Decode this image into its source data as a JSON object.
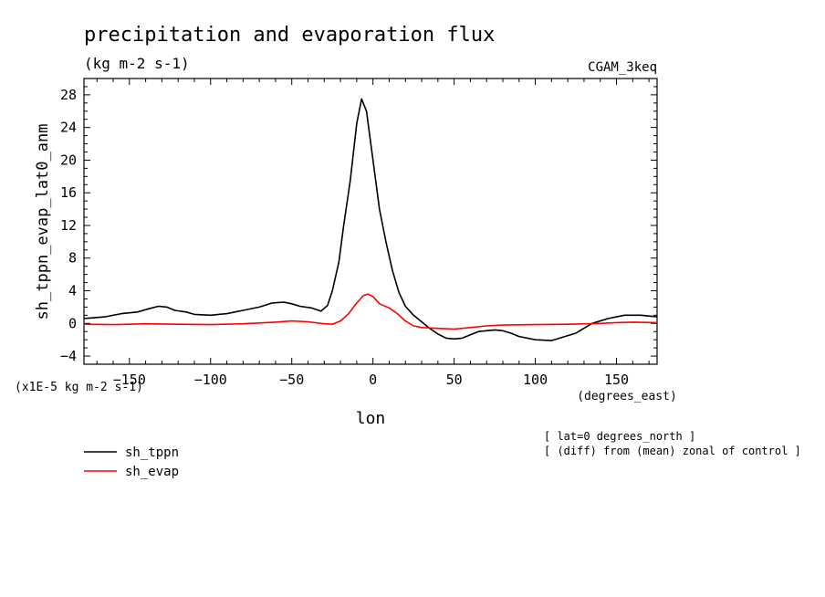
{
  "chart_data": {
    "type": "line",
    "title": "precipitation and evaporation flux",
    "subtitle": "(kg m-2 s-1)",
    "model_label": "CGAM_3keq",
    "xlabel": "lon",
    "x_units": "(degrees_east)",
    "ylabel": "sh_tppn_evap_lat0_anm",
    "y_scale_note": "(x1E-5 kg m-2 s-1)",
    "xlim": [
      -178,
      175
    ],
    "ylim": [
      -5,
      30
    ],
    "x_ticks": [
      -150,
      -100,
      -50,
      0,
      50,
      100,
      150
    ],
    "y_ticks": [
      -4,
      0,
      4,
      8,
      12,
      16,
      20,
      24,
      28
    ],
    "notes": [
      "[ lat=0 degrees_north ]",
      "[ (diff) from (mean) zonal of control ]"
    ],
    "colors": {
      "sh_tppn": "#000000",
      "sh_evap": "#ff0000"
    },
    "series": [
      {
        "name": "sh_tppn",
        "x": [
          -178,
          -165,
          -155,
          -145,
          -138,
          -132,
          -127,
          -122,
          -115,
          -110,
          -100,
          -90,
          -80,
          -70,
          -62,
          -55,
          -50,
          -45,
          -38,
          -32,
          -28,
          -25,
          -21,
          -18,
          -14,
          -10,
          -7,
          -4,
          0,
          4,
          8,
          12,
          16,
          20,
          25,
          30,
          35,
          40,
          45,
          50,
          55,
          60,
          65,
          70,
          75,
          80,
          85,
          90,
          100,
          110,
          115,
          125,
          135,
          145,
          155,
          165,
          175
        ],
        "values": [
          0.6,
          0.8,
          1.2,
          1.4,
          1.8,
          2.1,
          2.0,
          1.6,
          1.4,
          1.1,
          1.0,
          1.2,
          1.6,
          2.0,
          2.5,
          2.6,
          2.4,
          2.1,
          1.9,
          1.5,
          2.2,
          4.0,
          7.5,
          12.0,
          17.5,
          24.5,
          27.5,
          26.0,
          20.0,
          14.0,
          10.0,
          6.5,
          3.8,
          2.1,
          1.0,
          0.2,
          -0.6,
          -1.3,
          -1.8,
          -1.9,
          -1.8,
          -1.4,
          -1.0,
          -0.9,
          -0.8,
          -0.9,
          -1.2,
          -1.6,
          -2.0,
          -2.1,
          -1.8,
          -1.2,
          0.0,
          0.6,
          1.0,
          1.0,
          0.8
        ]
      },
      {
        "name": "sh_evap",
        "x": [
          -178,
          -160,
          -140,
          -120,
          -100,
          -80,
          -60,
          -50,
          -40,
          -30,
          -25,
          -20,
          -15,
          -10,
          -6,
          -3,
          0,
          4,
          10,
          15,
          20,
          25,
          30,
          40,
          50,
          60,
          70,
          80,
          100,
          120,
          140,
          150,
          160,
          175
        ],
        "values": [
          -0.1,
          -0.15,
          -0.05,
          -0.1,
          -0.15,
          -0.05,
          0.15,
          0.3,
          0.2,
          -0.05,
          -0.1,
          0.3,
          1.2,
          2.5,
          3.4,
          3.6,
          3.3,
          2.4,
          1.9,
          1.2,
          0.3,
          -0.3,
          -0.5,
          -0.6,
          -0.7,
          -0.5,
          -0.3,
          -0.2,
          -0.15,
          -0.1,
          0.0,
          0.1,
          0.15,
          0.1
        ]
      }
    ]
  }
}
